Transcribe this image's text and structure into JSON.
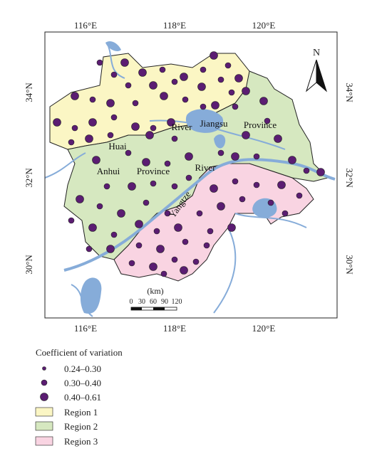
{
  "map": {
    "x_labels_top": [
      "116°E",
      "118°E",
      "120°E"
    ],
    "x_labels_bottom": [
      "116°E",
      "118°E",
      "120°E"
    ],
    "y_labels_left": [
      "34°N",
      "32°N",
      "30°N"
    ],
    "y_labels_right": [
      "34°N",
      "32°N",
      "30°N"
    ],
    "north": "N",
    "places": [
      "Huai",
      "River",
      "Jiangsu",
      "Province",
      "Anhui",
      "Province",
      "Yangtze",
      "River"
    ],
    "scale": {
      "unit": "(km)",
      "ticks": [
        "0",
        "30",
        "60",
        "90",
        "120"
      ]
    }
  },
  "legend": {
    "title": "Coefficient of variation",
    "items": [
      "0.24–0.30",
      "0.30–0.40",
      "0.40–0.61",
      "Region 1",
      "Region 2",
      "Region 3"
    ]
  }
}
